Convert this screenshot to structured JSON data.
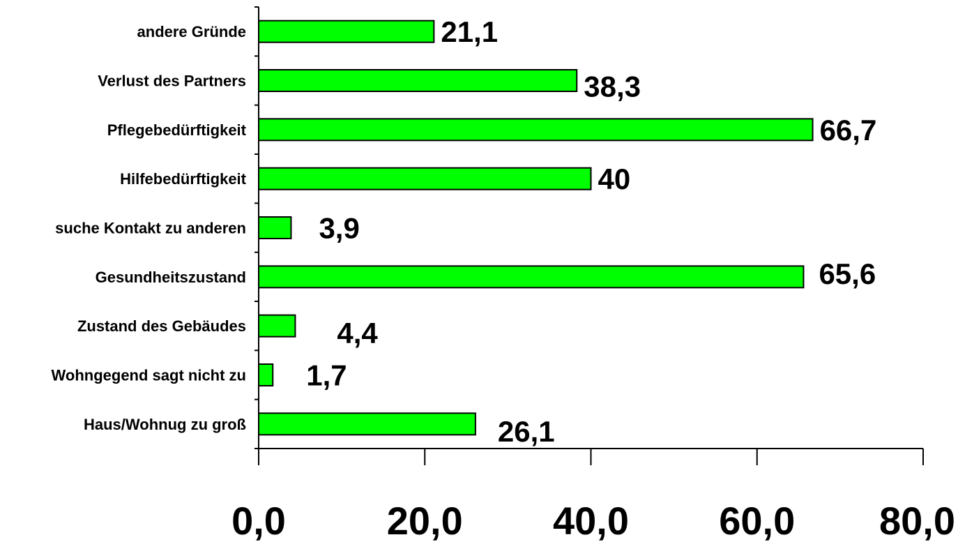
{
  "chart_data": {
    "type": "bar",
    "orientation": "horizontal",
    "title": "",
    "xlabel": "",
    "ylabel": "",
    "xlim": [
      0,
      80
    ],
    "grid": false,
    "legend": "none",
    "bar_color": "#00ff00",
    "categories": [
      "andere Gründe",
      "Verlust des Partners",
      "Pflegebedürftigkeit",
      "Hilfebedürftigkeit",
      "suche Kontakt zu anderen",
      "Gesundheitszustand",
      "Zustand des Gebäudes",
      "Wohngegend sagt nicht zu",
      "Haus/Wohnug zu groß"
    ],
    "values": [
      21.1,
      38.3,
      66.7,
      40,
      3.9,
      65.6,
      4.4,
      1.7,
      26.1
    ],
    "value_labels": [
      "21,1",
      "38,3",
      "66,7",
      "40",
      "3,9",
      "65,6",
      "4,4",
      "1,7",
      "26,1"
    ],
    "x_ticks": [
      0,
      20,
      40,
      60,
      80
    ],
    "x_tick_labels": [
      "0,0",
      "20,0",
      "40,0",
      "60,0",
      "80,0"
    ]
  }
}
